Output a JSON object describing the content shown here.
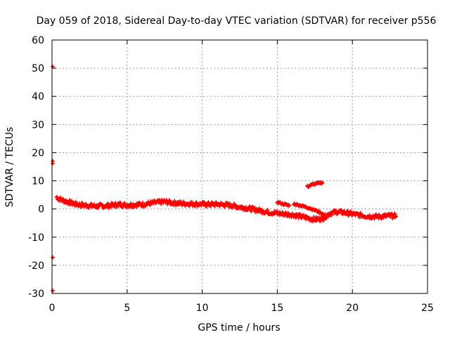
{
  "chart_data": {
    "type": "scatter",
    "title": "Day 059 of 2018, Sidereal Day-to-day VTEC variation (SDTVAR) for receiver p556",
    "xlabel": "GPS time / hours",
    "ylabel": "SDTVAR / TECUs",
    "xlim": [
      0,
      25
    ],
    "ylim": [
      -30,
      60
    ],
    "xticks": [
      0,
      5,
      10,
      15,
      20,
      25
    ],
    "yticks": [
      -30,
      -20,
      -10,
      0,
      10,
      20,
      30,
      40,
      50,
      60
    ],
    "grid": true,
    "marker": "+",
    "color": "#ff0000",
    "series": [
      {
        "name": "SDTVAR",
        "trend": [
          [
            0.3,
            4.2
          ],
          [
            0.6,
            3.3
          ],
          [
            1.0,
            2.6
          ],
          [
            1.5,
            1.8
          ],
          [
            2.0,
            1.4
          ],
          [
            2.5,
            1.2
          ],
          [
            3.0,
            1.0
          ],
          [
            3.5,
            1.1
          ],
          [
            4.0,
            1.3
          ],
          [
            4.5,
            1.6
          ],
          [
            5.0,
            1.4
          ],
          [
            5.5,
            1.5
          ],
          [
            6.0,
            1.6
          ],
          [
            6.5,
            2.0
          ],
          [
            7.0,
            2.3
          ],
          [
            7.5,
            2.6
          ],
          [
            8.0,
            2.2
          ],
          [
            8.5,
            2.0
          ],
          [
            9.0,
            1.9
          ],
          [
            9.5,
            1.8
          ],
          [
            10.0,
            1.7
          ],
          [
            10.5,
            1.6
          ],
          [
            11.0,
            1.7
          ],
          [
            11.5,
            1.5
          ],
          [
            12.0,
            1.2
          ],
          [
            12.5,
            0.7
          ],
          [
            13.0,
            0.3
          ],
          [
            13.5,
            -0.2
          ],
          [
            14.0,
            -0.7
          ],
          [
            14.5,
            -1.2
          ],
          [
            15.0,
            -1.5
          ],
          [
            15.5,
            -1.8
          ],
          [
            16.0,
            -2.0
          ],
          [
            16.5,
            -2.6
          ],
          [
            17.0,
            -3.2
          ],
          [
            17.5,
            -3.7
          ],
          [
            18.0,
            -3.4
          ],
          [
            18.5,
            -1.5
          ],
          [
            19.0,
            -1.0
          ],
          [
            19.5,
            -1.3
          ],
          [
            20.0,
            -1.8
          ],
          [
            20.5,
            -2.2
          ],
          [
            21.0,
            -2.5
          ],
          [
            21.5,
            -2.7
          ],
          [
            22.0,
            -2.6
          ],
          [
            22.5,
            -2.4
          ],
          [
            22.9,
            -2.5
          ]
        ],
        "outliers": [
          [
            0.05,
            50.5
          ],
          [
            0.05,
            17.0
          ],
          [
            0.05,
            16.2
          ],
          [
            0.05,
            -17.2
          ],
          [
            0.05,
            -29.0
          ]
        ],
        "branches": [
          [
            [
              15.0,
              2.4
            ],
            [
              15.4,
              1.8
            ],
            [
              15.8,
              1.2
            ]
          ],
          [
            [
              16.1,
              1.8
            ],
            [
              16.6,
              1.2
            ],
            [
              17.1,
              0.4
            ],
            [
              17.6,
              -0.6
            ],
            [
              18.0,
              -1.6
            ],
            [
              18.2,
              -2.8
            ]
          ],
          [
            [
              17.0,
              8.0
            ],
            [
              17.4,
              8.8
            ],
            [
              17.8,
              9.2
            ],
            [
              18.0,
              9.4
            ]
          ]
        ]
      }
    ]
  }
}
